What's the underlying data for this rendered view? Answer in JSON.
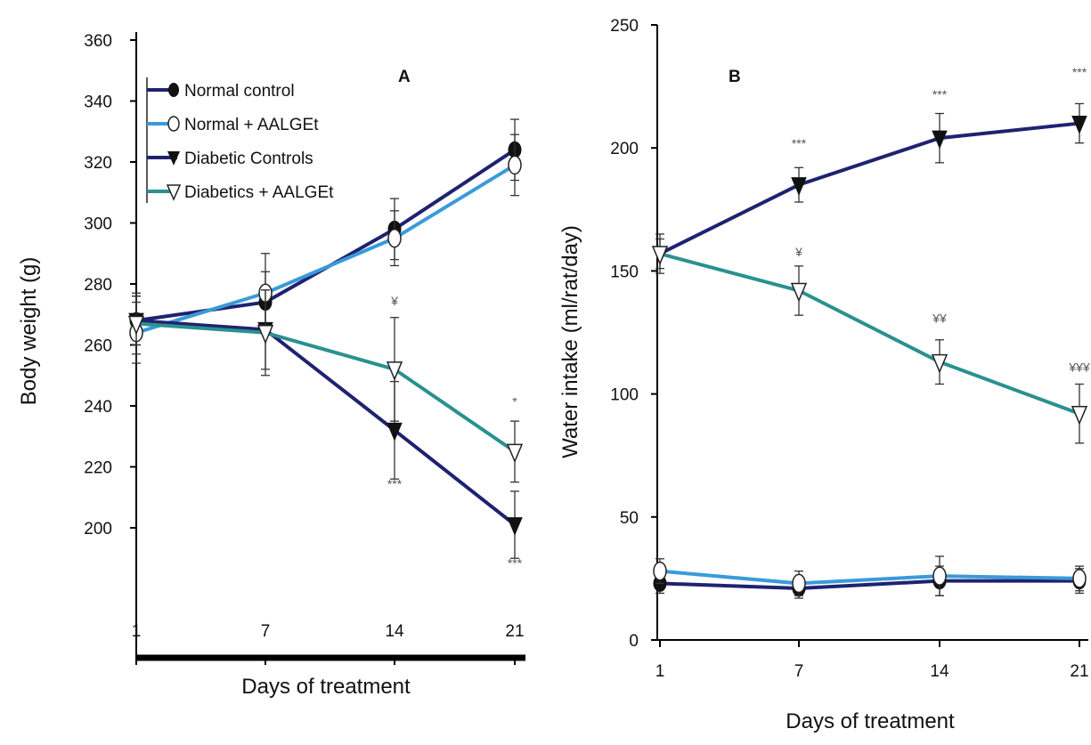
{
  "colors": {
    "normal_control": "#1f2270",
    "normal_aalget": "#3a9ad9",
    "diabetic_controls": "#1f2270",
    "diabetics_aalget": "#2a918f",
    "axis": "#000000"
  },
  "chart_data": [
    {
      "type": "line",
      "panel_label": "A",
      "xlabel": "Days of treatment",
      "ylabel": "Body weight (g)",
      "x": [
        1,
        7,
        14,
        21
      ],
      "x_tick_labels": [
        "1",
        "7",
        "14",
        "21"
      ],
      "y_tick_labels": [
        "200",
        "220",
        "240",
        "260",
        "280",
        "300",
        "320",
        "340",
        "360"
      ],
      "ylim": [
        180,
        360
      ],
      "grid": false,
      "legend_position": "top-left",
      "legend": [
        {
          "label": "Normal control",
          "marker": "filled-circle",
          "series": "Normal control"
        },
        {
          "label": "Normal + AALGEt",
          "marker": "open-circle",
          "series": "Normal + AALGEt"
        },
        {
          "label": "Diabetic Controls",
          "marker": "filled-triangle-down",
          "series": "Diabetic Controls"
        },
        {
          "label": "Diabetics + AALGEt",
          "marker": "open-triangle-down",
          "series": "Diabetics + AALGEt"
        }
      ],
      "series": [
        {
          "name": "Normal control",
          "marker": "filled-circle",
          "color_key": "normal_control",
          "values": [
            268,
            274,
            298,
            324
          ],
          "errors": [
            8,
            10,
            10,
            10
          ]
        },
        {
          "name": "Normal + AALGEt",
          "marker": "open-circle",
          "color_key": "normal_aalget",
          "values": [
            264,
            277,
            295,
            319
          ],
          "errors": [
            10,
            13,
            9,
            10
          ]
        },
        {
          "name": "Diabetic Controls",
          "marker": "filled-triangle-down",
          "color_key": "diabetic_controls",
          "values": [
            268,
            265,
            232,
            201
          ],
          "errors": [
            8,
            13,
            16,
            11
          ]
        },
        {
          "name": "Diabetics + AALGEt",
          "marker": "open-triangle-down",
          "color_key": "diabetics_aalget",
          "values": [
            267,
            264,
            252,
            225
          ],
          "errors": [
            10,
            14,
            17,
            10
          ]
        }
      ],
      "annotations": [
        {
          "text": "¥",
          "x": 14,
          "y": 273
        },
        {
          "text": "***",
          "x": 14,
          "y": 213
        },
        {
          "text": "*",
          "x": 21,
          "y": 240
        },
        {
          "text": "***",
          "x": 21,
          "y": 187
        }
      ]
    },
    {
      "type": "line",
      "panel_label": "B",
      "xlabel": "Days of treatment",
      "ylabel": "Water intake (ml/rat/day)",
      "x": [
        1,
        7,
        14,
        21
      ],
      "x_tick_labels": [
        "1",
        "7",
        "14",
        "21"
      ],
      "y_tick_labels": [
        "0",
        "50",
        "100",
        "150",
        "200",
        "250"
      ],
      "ylim": [
        0,
        250
      ],
      "grid": false,
      "series": [
        {
          "name": "Normal control",
          "marker": "filled-circle",
          "color_key": "normal_control",
          "values": [
            23,
            21,
            24,
            24
          ],
          "errors": [
            4,
            4,
            6,
            5
          ]
        },
        {
          "name": "Normal + AALGEt",
          "marker": "open-circle",
          "color_key": "normal_aalget",
          "values": [
            28,
            23,
            26,
            25
          ],
          "errors": [
            5,
            5,
            8,
            5
          ]
        },
        {
          "name": "Diabetic Controls",
          "marker": "filled-triangle-down",
          "color_key": "diabetic_controls",
          "values": [
            157,
            185,
            204,
            210
          ],
          "errors": [
            6,
            7,
            10,
            8
          ]
        },
        {
          "name": "Diabetics + AALGEt",
          "marker": "open-triangle-down",
          "color_key": "diabetics_aalget",
          "values": [
            157,
            142,
            113,
            92
          ],
          "errors": [
            8,
            10,
            9,
            12
          ]
        }
      ],
      "annotations": [
        {
          "text": "***",
          "x": 7,
          "y": 200
        },
        {
          "text": "***",
          "x": 14,
          "y": 220
        },
        {
          "text": "***",
          "x": 21,
          "y": 229
        },
        {
          "text": "¥",
          "x": 7,
          "y": 156
        },
        {
          "text": "¥¥",
          "x": 14,
          "y": 129
        },
        {
          "text": "¥¥¥",
          "x": 21,
          "y": 109
        }
      ]
    }
  ]
}
